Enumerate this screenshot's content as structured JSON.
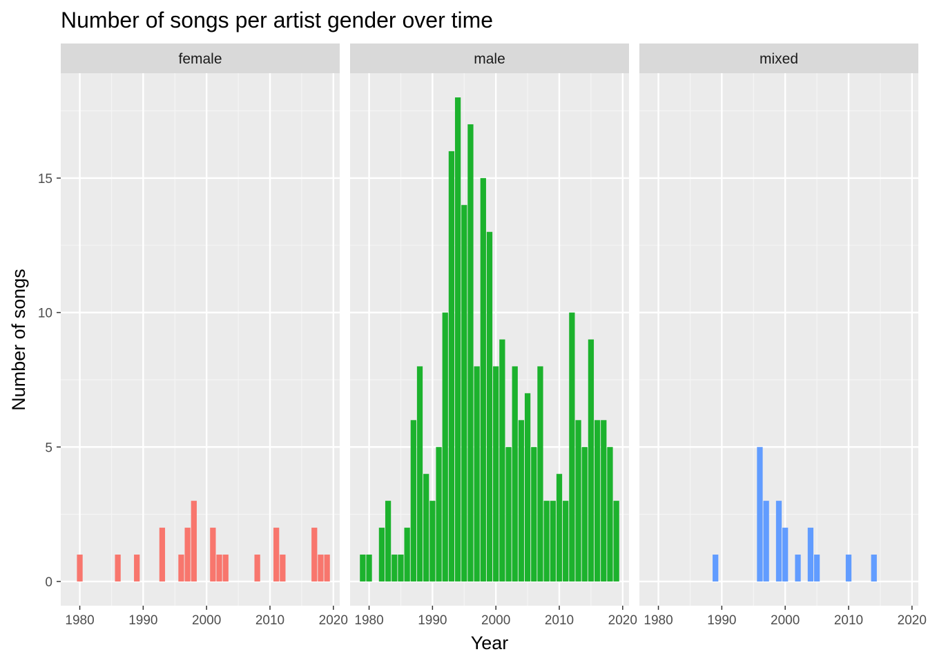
{
  "chart_data": {
    "type": "bar",
    "title": "Number of songs per artist gender over time",
    "xlabel": "Year",
    "ylabel": "Number of songs",
    "xlim": [
      1977,
      2021
    ],
    "ylim": [
      -0.9,
      18.9
    ],
    "x_ticks": [
      1980,
      1990,
      2000,
      2010,
      2020
    ],
    "y_ticks": [
      0,
      5,
      10,
      15
    ],
    "grid": true,
    "legend": "none",
    "panels": [
      {
        "name": "female",
        "color": "#F8766D",
        "data": [
          {
            "year": 1980,
            "count": 1
          },
          {
            "year": 1986,
            "count": 1
          },
          {
            "year": 1989,
            "count": 1
          },
          {
            "year": 1993,
            "count": 2
          },
          {
            "year": 1996,
            "count": 1
          },
          {
            "year": 1997,
            "count": 2
          },
          {
            "year": 1998,
            "count": 3
          },
          {
            "year": 2001,
            "count": 2
          },
          {
            "year": 2002,
            "count": 1
          },
          {
            "year": 2003,
            "count": 1
          },
          {
            "year": 2008,
            "count": 1
          },
          {
            "year": 2011,
            "count": 2
          },
          {
            "year": 2012,
            "count": 1
          },
          {
            "year": 2017,
            "count": 2
          },
          {
            "year": 2018,
            "count": 1
          },
          {
            "year": 2019,
            "count": 1
          }
        ]
      },
      {
        "name": "male",
        "color": "#1CB22D",
        "data": [
          {
            "year": 1979,
            "count": 1
          },
          {
            "year": 1980,
            "count": 1
          },
          {
            "year": 1982,
            "count": 2
          },
          {
            "year": 1983,
            "count": 3
          },
          {
            "year": 1984,
            "count": 1
          },
          {
            "year": 1985,
            "count": 1
          },
          {
            "year": 1986,
            "count": 2
          },
          {
            "year": 1987,
            "count": 6
          },
          {
            "year": 1988,
            "count": 8
          },
          {
            "year": 1989,
            "count": 4
          },
          {
            "year": 1990,
            "count": 3
          },
          {
            "year": 1991,
            "count": 5
          },
          {
            "year": 1992,
            "count": 10
          },
          {
            "year": 1993,
            "count": 16
          },
          {
            "year": 1994,
            "count": 18
          },
          {
            "year": 1995,
            "count": 14
          },
          {
            "year": 1996,
            "count": 17
          },
          {
            "year": 1997,
            "count": 8
          },
          {
            "year": 1998,
            "count": 15
          },
          {
            "year": 1999,
            "count": 13
          },
          {
            "year": 2000,
            "count": 8
          },
          {
            "year": 2001,
            "count": 9
          },
          {
            "year": 2002,
            "count": 5
          },
          {
            "year": 2003,
            "count": 8
          },
          {
            "year": 2004,
            "count": 6
          },
          {
            "year": 2005,
            "count": 7
          },
          {
            "year": 2006,
            "count": 5
          },
          {
            "year": 2007,
            "count": 8
          },
          {
            "year": 2008,
            "count": 3
          },
          {
            "year": 2009,
            "count": 3
          },
          {
            "year": 2010,
            "count": 4
          },
          {
            "year": 2011,
            "count": 3
          },
          {
            "year": 2012,
            "count": 10
          },
          {
            "year": 2013,
            "count": 6
          },
          {
            "year": 2014,
            "count": 5
          },
          {
            "year": 2015,
            "count": 9
          },
          {
            "year": 2016,
            "count": 6
          },
          {
            "year": 2017,
            "count": 6
          },
          {
            "year": 2018,
            "count": 5
          },
          {
            "year": 2019,
            "count": 3
          }
        ]
      },
      {
        "name": "mixed",
        "color": "#619CFF",
        "data": [
          {
            "year": 1989,
            "count": 1
          },
          {
            "year": 1996,
            "count": 5
          },
          {
            "year": 1997,
            "count": 3
          },
          {
            "year": 1999,
            "count": 3
          },
          {
            "year": 2000,
            "count": 2
          },
          {
            "year": 2002,
            "count": 1
          },
          {
            "year": 2004,
            "count": 2
          },
          {
            "year": 2005,
            "count": 1
          },
          {
            "year": 2010,
            "count": 1
          },
          {
            "year": 2014,
            "count": 1
          }
        ]
      }
    ]
  }
}
